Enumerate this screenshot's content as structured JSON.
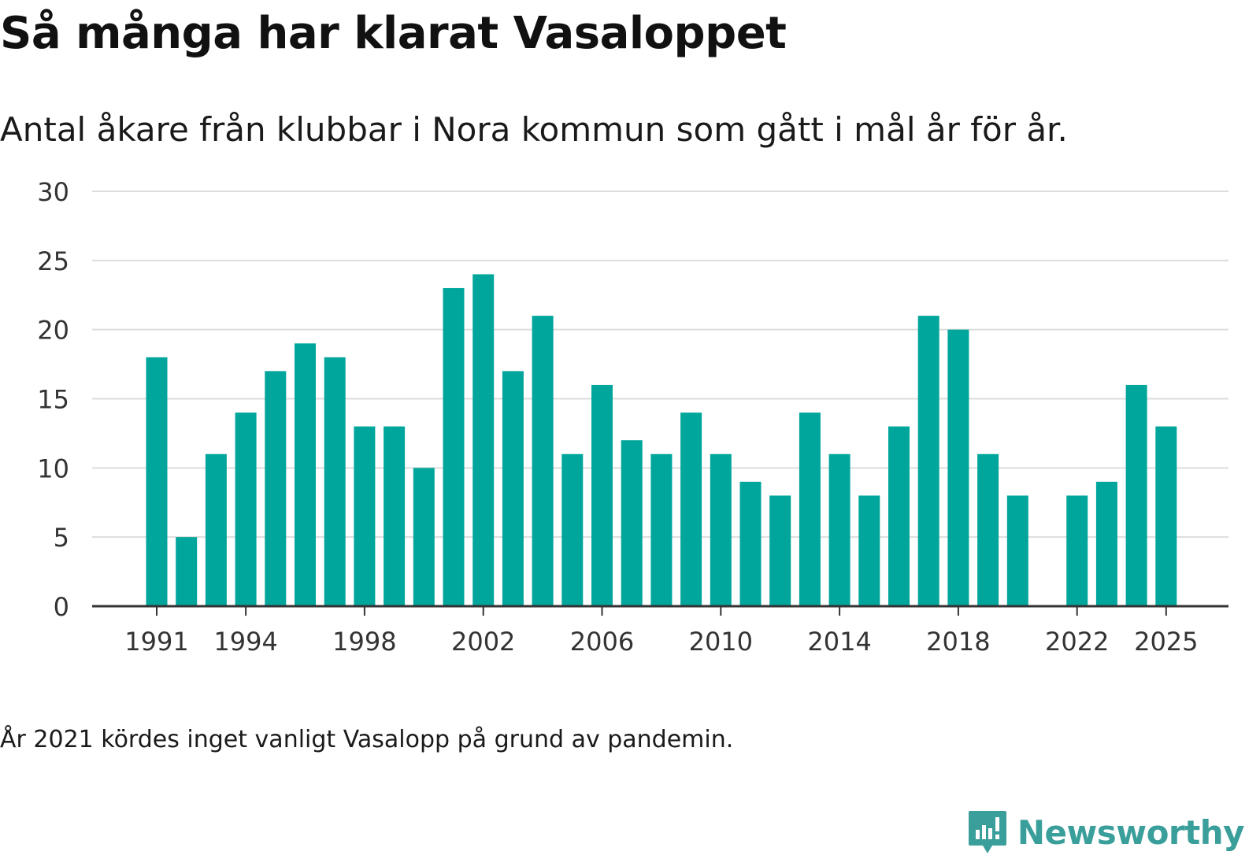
{
  "title": "Så många har klarat Vasaloppet",
  "subtitle": "Antal åkare från klubbar i Nora kommun som gått i mål år för år.",
  "note": "År 2021 kördes inget vanligt Vasalopp på grund av pandemin.",
  "brand": {
    "name": "Newsworthy",
    "color": "#3a9e9a",
    "icon": "newsworthy-logo-icon"
  },
  "colors": {
    "bar": "#00a69c",
    "grid": "#dddddd",
    "axis": "#333333",
    "tick_text": "#333333"
  },
  "chart_data": {
    "type": "bar",
    "title": "Så många har klarat Vasaloppet",
    "xlabel": "",
    "ylabel": "",
    "ylim": [
      0,
      30
    ],
    "yticks": [
      0,
      5,
      10,
      15,
      20,
      25,
      30
    ],
    "xtick_labels": [
      "1991",
      "1994",
      "1998",
      "2002",
      "2006",
      "2010",
      "2014",
      "2018",
      "2022",
      "2025"
    ],
    "grid": true,
    "categories": [
      "1991",
      "1992",
      "1993",
      "1994",
      "1995",
      "1996",
      "1997",
      "1998",
      "1999",
      "2000",
      "2001",
      "2002",
      "2003",
      "2004",
      "2005",
      "2006",
      "2007",
      "2008",
      "2009",
      "2010",
      "2011",
      "2012",
      "2013",
      "2014",
      "2015",
      "2016",
      "2017",
      "2018",
      "2019",
      "2020",
      "2021",
      "2022",
      "2023",
      "2024",
      "2025"
    ],
    "values": [
      18,
      5,
      11,
      14,
      17,
      19,
      18,
      13,
      13,
      10,
      23,
      24,
      17,
      21,
      11,
      16,
      12,
      11,
      14,
      11,
      9,
      8,
      14,
      11,
      8,
      13,
      21,
      20,
      11,
      8,
      null,
      8,
      9,
      16,
      13
    ]
  }
}
